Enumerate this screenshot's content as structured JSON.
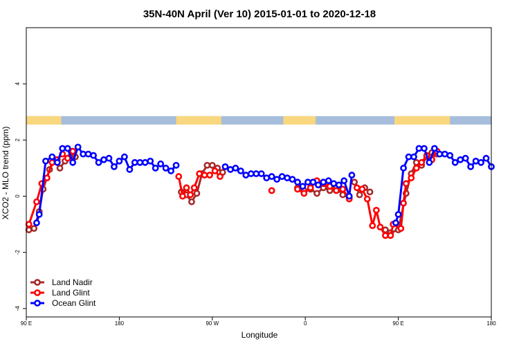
{
  "chart_data": {
    "type": "line",
    "title": "35N-40N April (Ver 10)   2015-01-01 to 2020-12-18",
    "xlabel": "Longitude",
    "ylabel": "XCO2 - MLO trend (ppm)",
    "xlim": [
      90,
      450
    ],
    "ylim": [
      -4.3,
      6.0
    ],
    "x_ticks": [
      {
        "value": 90,
        "label": "90 E"
      },
      {
        "value": 162,
        "label": "180"
      },
      {
        "value": 234,
        "label": "90 W"
      },
      {
        "value": 306,
        "label": "0"
      },
      {
        "value": 378,
        "label": "90 E"
      },
      {
        "value": 450,
        "label": "180"
      }
    ],
    "y_ticks": [
      {
        "value": -4,
        "label": "-4"
      },
      {
        "value": -2,
        "label": "-2"
      },
      {
        "value": 0,
        "label": "0"
      },
      {
        "value": 2,
        "label": "2"
      },
      {
        "value": 4,
        "label": "4"
      }
    ],
    "landmask": {
      "y_range": [
        2.55,
        2.85
      ],
      "ocean_color": "#a6bedc",
      "land_color": "#f9d77e",
      "land_segments": [
        [
          90,
          117
        ],
        [
          206,
          241
        ],
        [
          289,
          314
        ],
        [
          375,
          418
        ]
      ]
    },
    "legend": {
      "position": "bottom-left",
      "entries": [
        {
          "label": "Land Nadir",
          "color": "#a52a2a"
        },
        {
          "label": "Land Glint",
          "color": "#ff0000"
        },
        {
          "label": "Ocean Glint",
          "color": "#0000ff"
        }
      ]
    },
    "series": [
      {
        "name": "Land Nadir",
        "color": "#a52a2a",
        "segments": [
          [
            [
              92,
              -1.2
            ],
            [
              96,
              -1.15
            ],
            [
              100,
              -0.55
            ],
            [
              103,
              0.25
            ],
            [
              108,
              0.95
            ],
            [
              112,
              1.3
            ],
            [
              116,
              1.0
            ],
            [
              120,
              1.25
            ],
            [
              124,
              1.4
            ],
            [
              128,
              1.4
            ]
          ],
          [
            [
              210,
              0.15
            ],
            [
              214,
              0.05
            ],
            [
              218,
              -0.2
            ],
            [
              222,
              0.1
            ],
            [
              226,
              0.8
            ],
            [
              230,
              1.1
            ],
            [
              234,
              1.1
            ],
            [
              238,
              1.0
            ],
            [
              242,
              0.85
            ]
          ],
          [
            [
              300,
              0.3
            ],
            [
              305,
              0.2
            ],
            [
              310,
              0.25
            ],
            [
              315,
              0.1
            ],
            [
              320,
              0.3
            ],
            [
              325,
              0.2
            ],
            [
              330,
              0.3
            ],
            [
              335,
              0.05
            ],
            [
              340,
              -0.05
            ]
          ],
          [
            [
              344,
              0.5
            ],
            [
              348,
              0.05
            ],
            [
              352,
              0.3
            ],
            [
              356,
              0.15
            ]
          ],
          [
            [
              368,
              -1.2
            ],
            [
              372,
              -1.3
            ],
            [
              378,
              -1.2
            ],
            [
              384,
              0.1
            ],
            [
              388,
              0.8
            ],
            [
              392,
              1.2
            ],
            [
              396,
              1.1
            ],
            [
              400,
              1.4
            ],
            [
              404,
              1.55
            ],
            [
              408,
              1.5
            ]
          ]
        ]
      },
      {
        "name": "Land Glint",
        "color": "#ff0000",
        "segments": [
          [
            [
              92,
              -1.0
            ],
            [
              98,
              -0.2
            ],
            [
              102,
              0.45
            ],
            [
              106,
              0.65
            ],
            [
              110,
              1.2
            ],
            [
              114,
              1.3
            ],
            [
              118,
              1.5
            ],
            [
              122,
              1.35
            ],
            [
              126,
              1.6
            ]
          ],
          [
            [
              208,
              0.7
            ],
            [
              211,
              0.0
            ],
            [
              214,
              0.3
            ],
            [
              217,
              0.05
            ],
            [
              220,
              0.3
            ],
            [
              224,
              0.8
            ],
            [
              228,
              0.75
            ],
            [
              232,
              0.75
            ],
            [
              236,
              0.9
            ],
            [
              240,
              0.7
            ]
          ],
          [
            [
              280,
              0.2
            ]
          ],
          [
            [
              300,
              0.25
            ],
            [
              305,
              0.1
            ],
            [
              310,
              0.3
            ],
            [
              315,
              0.55
            ],
            [
              320,
              0.45
            ],
            [
              325,
              0.35
            ],
            [
              330,
              0.2
            ],
            [
              335,
              0.25
            ],
            [
              340,
              -0.1
            ]
          ],
          [
            [
              346,
              0.3
            ],
            [
              350,
              0.25
            ],
            [
              354,
              -0.1
            ],
            [
              358,
              -1.05
            ],
            [
              361,
              -0.5
            ],
            [
              364,
              -1.1
            ],
            [
              368,
              -1.4
            ],
            [
              372,
              -1.4
            ],
            [
              374,
              -1.0
            ],
            [
              380,
              -1.15
            ],
            [
              382,
              -0.25
            ],
            [
              384,
              0.45
            ],
            [
              388,
              0.65
            ],
            [
              392,
              1.0
            ],
            [
              396,
              1.2
            ],
            [
              400,
              1.45
            ],
            [
              404,
              1.3
            ],
            [
              408,
              1.6
            ]
          ]
        ]
      },
      {
        "name": "Ocean Glint",
        "color": "#0000ff",
        "segments": [
          [
            [
              98,
              -0.95
            ],
            [
              100,
              -0.65
            ],
            [
              105,
              1.25
            ],
            [
              110,
              1.4
            ],
            [
              114,
              1.2
            ],
            [
              118,
              1.7
            ],
            [
              122,
              1.7
            ],
            [
              126,
              1.2
            ],
            [
              130,
              1.75
            ],
            [
              134,
              1.5
            ],
            [
              138,
              1.5
            ],
            [
              142,
              1.45
            ],
            [
              146,
              1.2
            ],
            [
              150,
              1.3
            ],
            [
              154,
              1.35
            ],
            [
              158,
              1.05
            ],
            [
              162,
              1.25
            ],
            [
              166,
              1.4
            ],
            [
              170,
              0.95
            ],
            [
              174,
              1.2
            ],
            [
              178,
              1.2
            ],
            [
              182,
              1.2
            ],
            [
              186,
              1.25
            ],
            [
              190,
              1.0
            ],
            [
              194,
              1.15
            ],
            [
              198,
              1.0
            ],
            [
              202,
              0.9
            ],
            [
              206,
              1.1
            ]
          ],
          [
            [
              244,
              1.05
            ],
            [
              248,
              0.95
            ],
            [
              252,
              1.0
            ],
            [
              256,
              0.9
            ],
            [
              260,
              0.75
            ],
            [
              264,
              0.8
            ],
            [
              268,
              0.8
            ],
            [
              272,
              0.8
            ],
            [
              276,
              0.65
            ],
            [
              280,
              0.7
            ],
            [
              284,
              0.6
            ],
            [
              288,
              0.7
            ],
            [
              292,
              0.65
            ],
            [
              296,
              0.6
            ],
            [
              300,
              0.5
            ],
            [
              304,
              0.35
            ],
            [
              308,
              0.5
            ],
            [
              312,
              0.5
            ],
            [
              316,
              0.4
            ],
            [
              320,
              0.5
            ],
            [
              324,
              0.55
            ],
            [
              328,
              0.45
            ],
            [
              332,
              0.4
            ],
            [
              336,
              0.55
            ],
            [
              340,
              0.0
            ],
            [
              342,
              0.75
            ]
          ],
          [
            [
              376,
              -0.95
            ],
            [
              378,
              -0.65
            ],
            [
              382,
              1.0
            ],
            [
              386,
              1.4
            ],
            [
              390,
              1.4
            ],
            [
              394,
              1.7
            ],
            [
              398,
              1.7
            ],
            [
              402,
              1.2
            ],
            [
              406,
              1.7
            ],
            [
              410,
              1.5
            ],
            [
              414,
              1.5
            ],
            [
              418,
              1.45
            ],
            [
              422,
              1.2
            ],
            [
              426,
              1.3
            ],
            [
              430,
              1.35
            ],
            [
              434,
              1.05
            ],
            [
              438,
              1.25
            ],
            [
              442,
              1.2
            ],
            [
              446,
              1.35
            ],
            [
              450,
              1.05
            ]
          ]
        ]
      }
    ]
  }
}
